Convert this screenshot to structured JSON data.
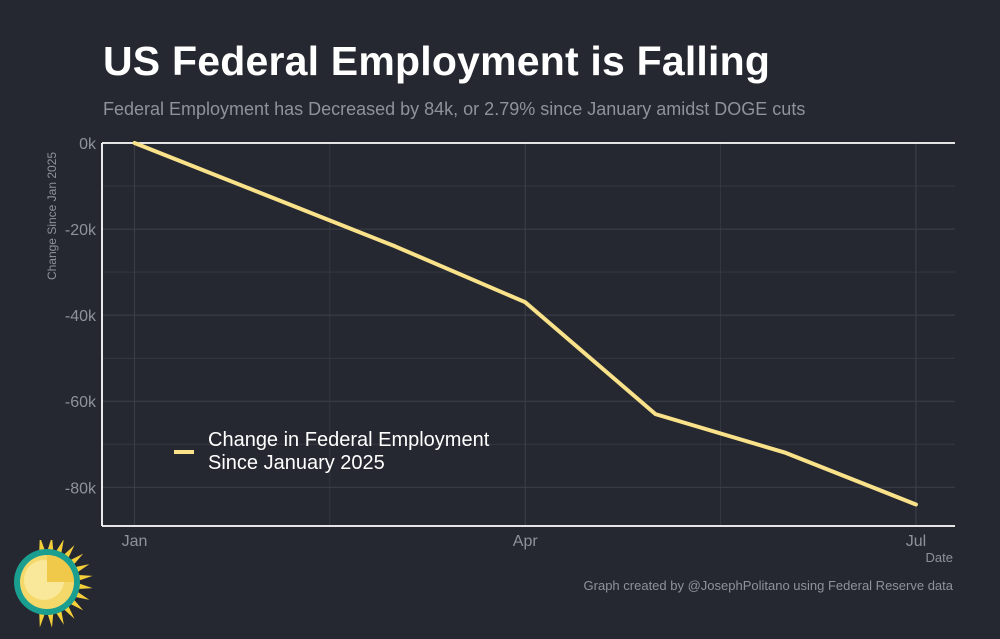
{
  "title": "US Federal Employment is Falling",
  "subtitle": "Federal Employment has Decreased by 84k, or 2.79% since January amidst DOGE cuts",
  "caption": "Graph created by @JosephPolitano using Federal Reserve data",
  "logo": {
    "icon": "sun-icon"
  },
  "colors": {
    "background": "#252830",
    "line": "#f9e28a",
    "grid": "#3d4048",
    "axis": "#ffffff",
    "muted": "#8f929a"
  },
  "chart_data": {
    "type": "line",
    "title": "US Federal Employment is Falling",
    "subtitle": "Federal Employment has Decreased by 84k, or 2.79% since January amidst DOGE cuts",
    "xlabel": "Date",
    "ylabel": "Change Since Jan 2025",
    "x_ticks": [
      {
        "label": "Jan",
        "month": 0
      },
      {
        "label": "Apr",
        "month": 3
      },
      {
        "label": "Jul",
        "month": 6
      }
    ],
    "y_ticks": [
      {
        "label": "0k",
        "value": 0
      },
      {
        "label": "-20k",
        "value": -20
      },
      {
        "label": "-40k",
        "value": -40
      },
      {
        "label": "-60k",
        "value": -60
      },
      {
        "label": "-80k",
        "value": -80
      }
    ],
    "xlim": [
      -0.25,
      6.3
    ],
    "ylim": [
      -89,
      0
    ],
    "grid": true,
    "legend_position": "bottom-left",
    "series": [
      {
        "name": "Change in Federal Employment Since January 2025",
        "legend_lines": [
          "Change in Federal Employment",
          "Since January 2025"
        ],
        "x": [
          0,
          1,
          2,
          3,
          4,
          5,
          6
        ],
        "values": [
          0,
          -12,
          -24,
          -37,
          -63,
          -72,
          -84
        ]
      }
    ]
  }
}
